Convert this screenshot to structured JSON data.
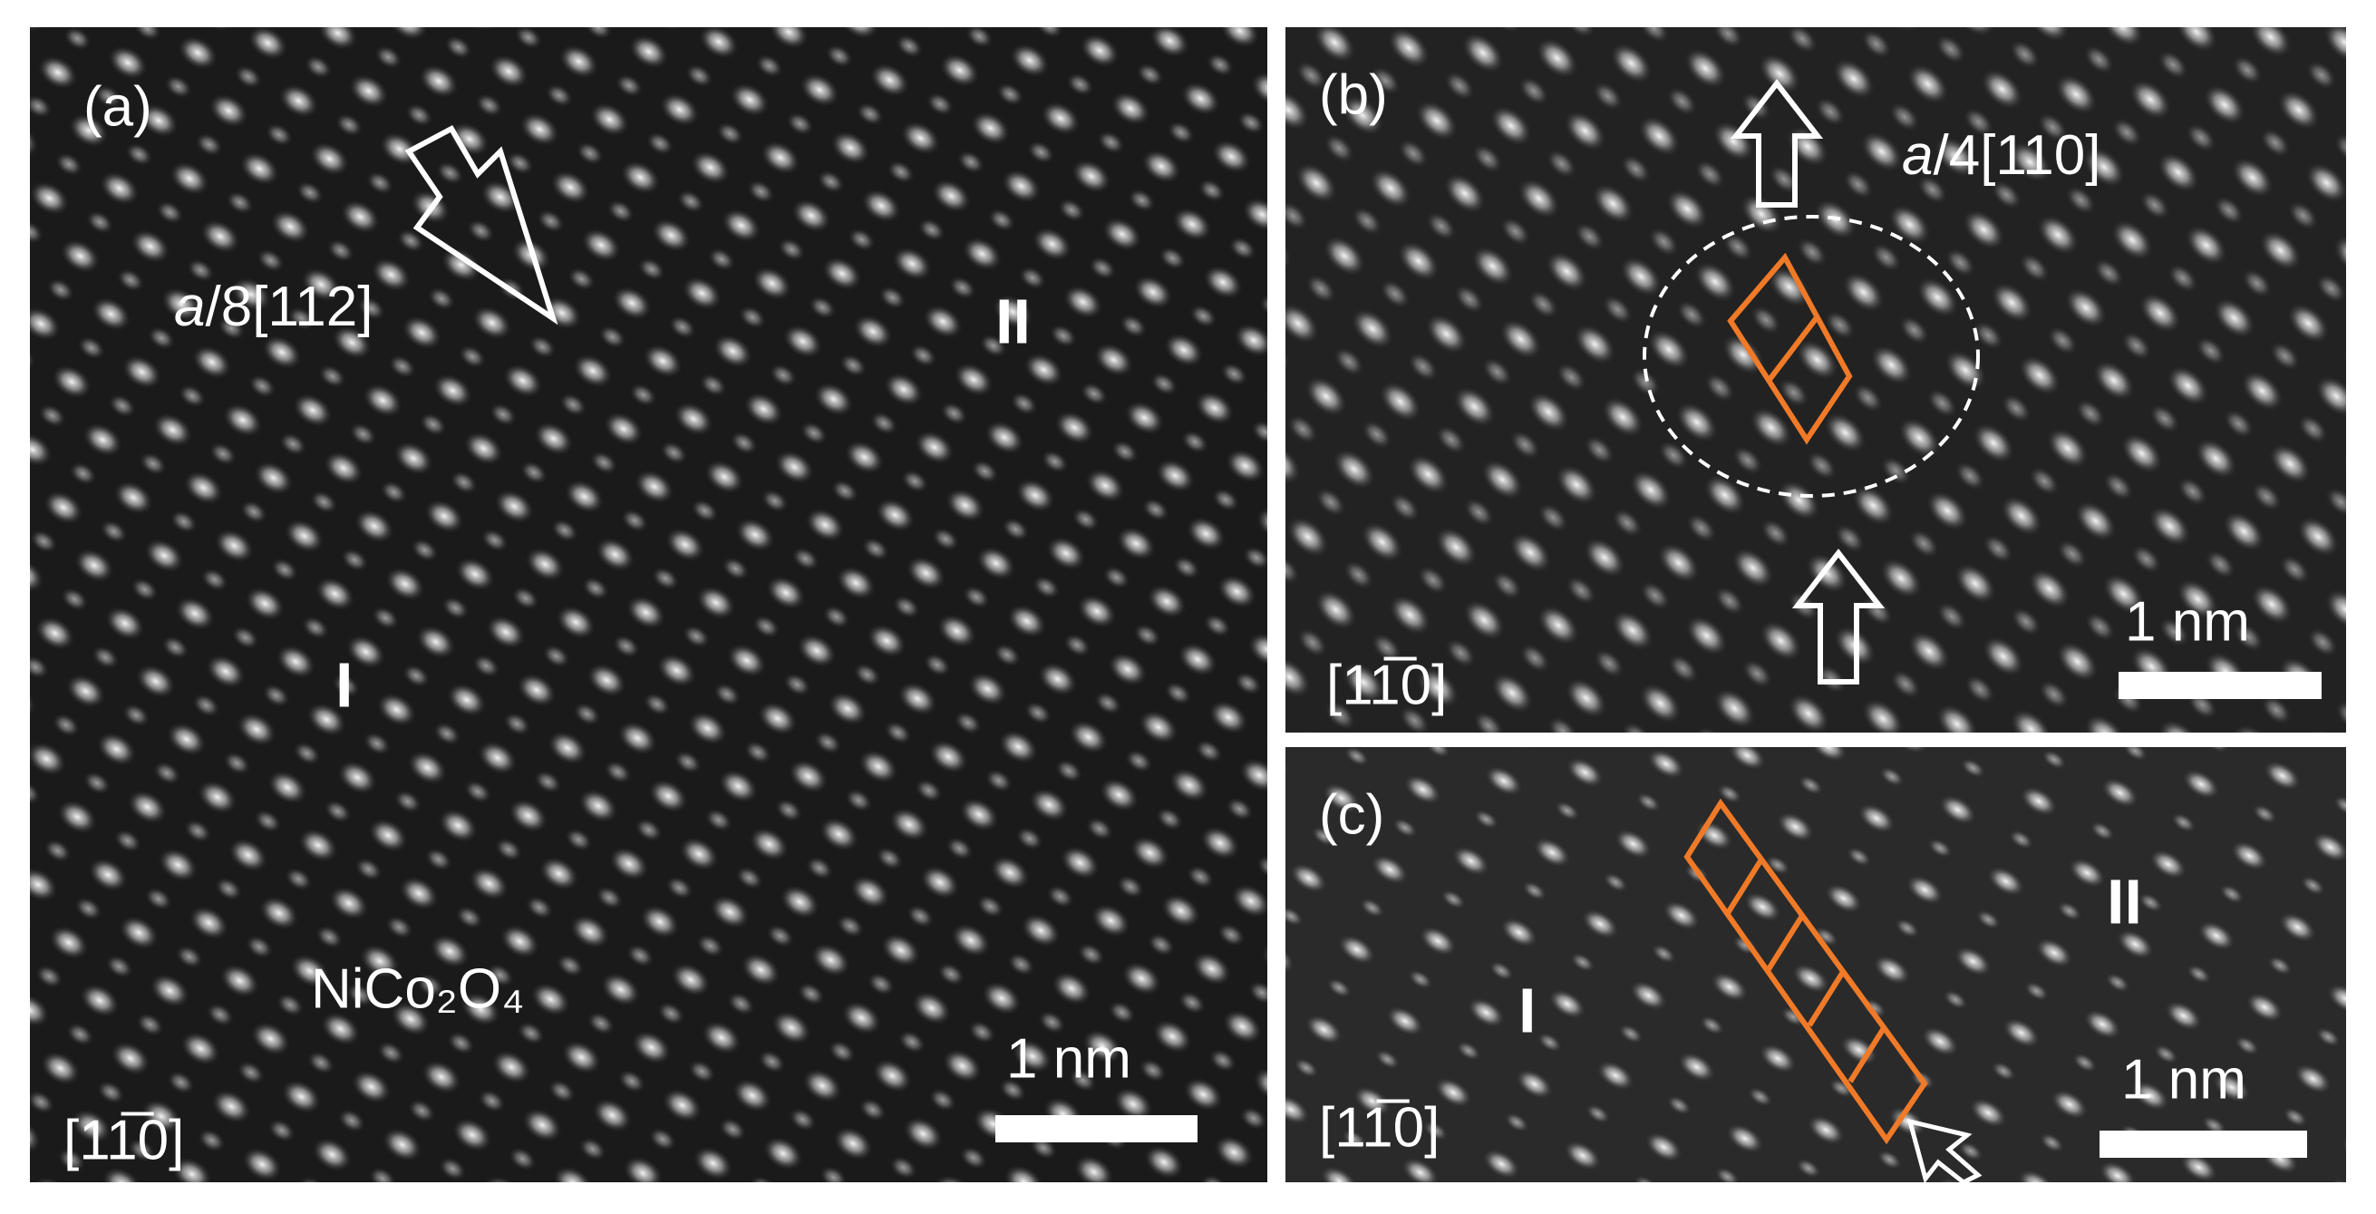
{
  "panels": [
    {
      "label": "(a)",
      "annotation": {
        "italic": "a",
        "rest": "/8[112]"
      },
      "regions": [
        "II",
        "I"
      ],
      "material": "NiCo₂O₄",
      "scale_bar": "1 nm",
      "zone_axis": "[11̅0]"
    },
    {
      "label": "(b)",
      "annotation": {
        "italic": "a",
        "rest": "/4[110]"
      },
      "scale_bar": "1 nm",
      "zone_axis": "[11̅0]"
    },
    {
      "label": "(c)",
      "regions": [
        "II",
        "I"
      ],
      "scale_bar": "1 nm",
      "zone_axis": "[11̅0]"
    }
  ]
}
